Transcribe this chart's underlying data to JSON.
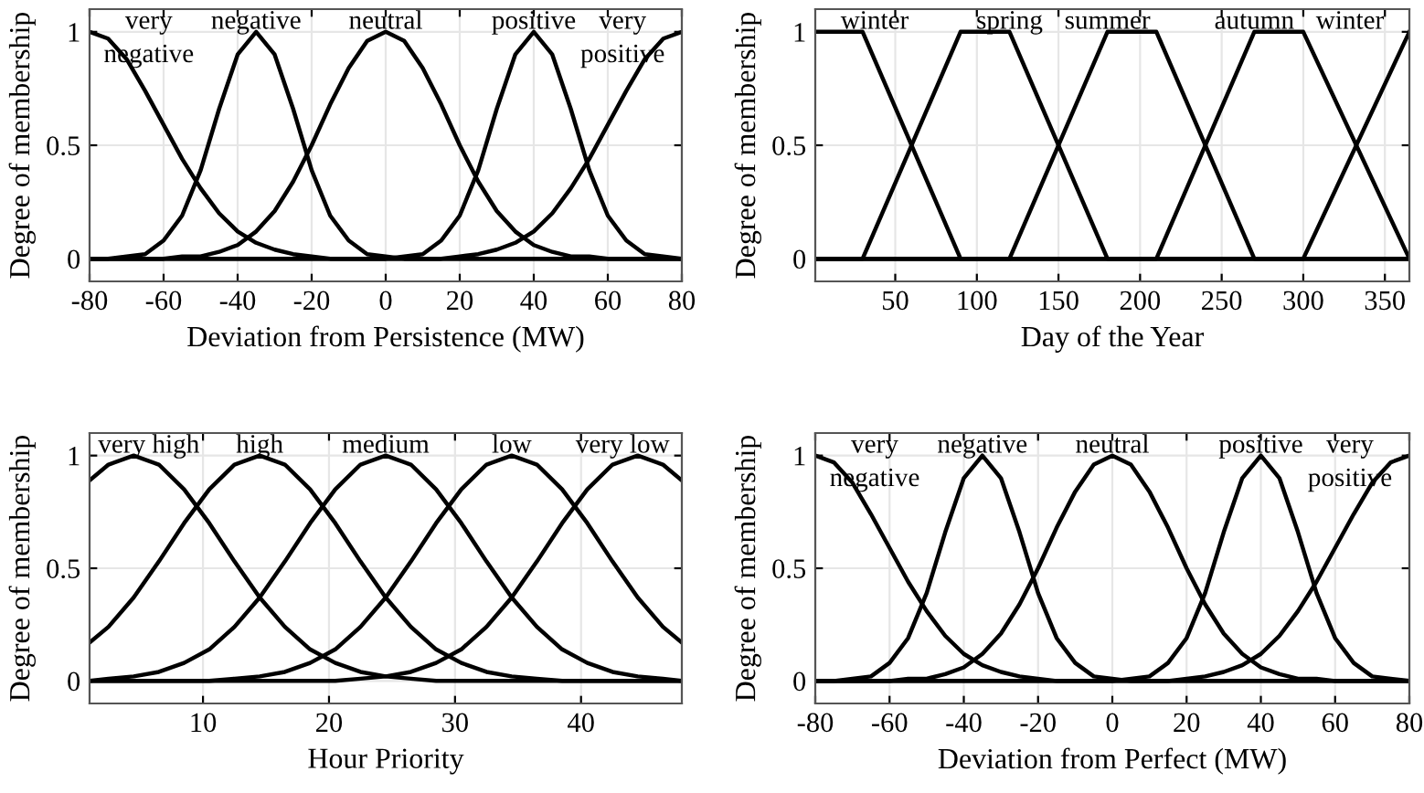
{
  "chart_data": [
    {
      "type": "line",
      "xlabel": "Deviation from Persistence (MW)",
      "ylabel": "Degree of membership",
      "xlim": [
        -80,
        80
      ],
      "xticks": [
        -80,
        -60,
        -40,
        -20,
        0,
        20,
        40,
        60,
        80
      ],
      "ylim": [
        -0.1,
        1.1
      ],
      "yticks": [
        0,
        0.5,
        1
      ],
      "grid": true,
      "legend": "top",
      "marker": "none",
      "line_style": "solid",
      "x": [
        -80,
        -75,
        -70,
        -65,
        -60,
        -55,
        -50,
        -45,
        -40,
        -35,
        -30,
        -25,
        -20,
        -15,
        -10,
        -5,
        0,
        5,
        10,
        15,
        20,
        25,
        30,
        35,
        40,
        45,
        50,
        55,
        60,
        65,
        70,
        75,
        80
      ],
      "series": [
        {
          "name": "very\nnegative",
          "color": "#000000",
          "values": [
            1,
            0.97,
            0.88,
            0.74,
            0.59,
            0.44,
            0.31,
            0.2,
            0.12,
            0.07,
            0.04,
            0.02,
            0.01,
            0,
            0,
            0,
            0,
            0,
            0,
            0,
            0,
            0,
            0,
            0,
            0,
            0,
            0,
            0,
            0,
            0,
            0,
            0,
            0
          ]
        },
        {
          "name": "negative",
          "color": "#000000",
          "values": [
            0,
            0,
            0.01,
            0.02,
            0.08,
            0.19,
            0.39,
            0.66,
            0.9,
            1,
            0.9,
            0.66,
            0.39,
            0.19,
            0.08,
            0.02,
            0.01,
            0,
            0,
            0,
            0,
            0,
            0,
            0,
            0,
            0,
            0,
            0,
            0,
            0,
            0,
            0,
            0
          ]
        },
        {
          "name": "neutral",
          "color": "#000000",
          "values": [
            0,
            0,
            0,
            0,
            0,
            0.01,
            0.01,
            0.03,
            0.06,
            0.12,
            0.21,
            0.34,
            0.5,
            0.68,
            0.84,
            0.96,
            1,
            0.96,
            0.84,
            0.68,
            0.5,
            0.34,
            0.21,
            0.12,
            0.06,
            0.03,
            0.01,
            0.01,
            0,
            0,
            0,
            0,
            0
          ]
        },
        {
          "name": "positive",
          "color": "#000000",
          "values": [
            0,
            0,
            0,
            0,
            0,
            0,
            0,
            0,
            0,
            0,
            0,
            0,
            0,
            0,
            0,
            0,
            0,
            0.01,
            0.02,
            0.08,
            0.19,
            0.39,
            0.66,
            0.9,
            1,
            0.9,
            0.66,
            0.39,
            0.19,
            0.08,
            0.02,
            0.01,
            0
          ]
        },
        {
          "name": "very\npositive",
          "color": "#000000",
          "values": [
            0,
            0,
            0,
            0,
            0,
            0,
            0,
            0,
            0,
            0,
            0,
            0,
            0,
            0,
            0,
            0,
            0,
            0,
            0,
            0,
            0.01,
            0.02,
            0.04,
            0.07,
            0.12,
            0.2,
            0.31,
            0.44,
            0.59,
            0.74,
            0.88,
            0.97,
            1
          ]
        }
      ]
    },
    {
      "type": "line",
      "xlabel": "Day of the Year",
      "ylabel": "Degree of membership",
      "xlim": [
        1,
        365
      ],
      "xticks": [
        50,
        100,
        150,
        200,
        250,
        300,
        350
      ],
      "ylim": [
        -0.1,
        1.1
      ],
      "yticks": [
        0,
        0.5,
        1
      ],
      "grid": true,
      "legend": "top",
      "marker": "none",
      "line_style": "solid",
      "series": [
        {
          "name": "winter",
          "color": "#000000",
          "x": [
            1,
            30,
            90,
            365
          ],
          "values": [
            1,
            1,
            0,
            0
          ]
        },
        {
          "name": "spring",
          "color": "#000000",
          "x": [
            1,
            30,
            90,
            120,
            180,
            365
          ],
          "values": [
            0,
            0,
            1,
            1,
            0,
            0
          ]
        },
        {
          "name": "summer",
          "color": "#000000",
          "x": [
            1,
            120,
            180,
            210,
            270,
            365
          ],
          "values": [
            0,
            0,
            1,
            1,
            0,
            0
          ]
        },
        {
          "name": "autumn",
          "color": "#000000",
          "x": [
            1,
            210,
            270,
            300,
            365
          ],
          "values": [
            0,
            0,
            1,
            1,
            0
          ]
        },
        {
          "name": "winter",
          "color": "#000000",
          "x": [
            1,
            300,
            365
          ],
          "values": [
            0,
            0,
            1
          ]
        }
      ]
    },
    {
      "type": "line",
      "xlabel": "Hour Priority",
      "ylabel": "Degree of membership",
      "xlim": [
        1,
        48
      ],
      "xticks": [
        10,
        20,
        30,
        40
      ],
      "ylim": [
        -0.1,
        1.1
      ],
      "yticks": [
        0,
        0.5,
        1
      ],
      "grid": true,
      "legend": "top",
      "marker": "none",
      "line_style": "solid",
      "x": [
        1,
        2.5,
        4.5,
        6.5,
        8.5,
        10.5,
        12.5,
        14.5,
        16.5,
        18.5,
        20.5,
        22.5,
        24.5,
        26.5,
        28.5,
        30.5,
        32.5,
        34.5,
        36.5,
        38.5,
        40.5,
        42.5,
        44.5,
        46.5,
        48
      ],
      "series": [
        {
          "name": "very high",
          "color": "#000000",
          "values": [
            0.89,
            0.96,
            1,
            0.96,
            0.85,
            0.7,
            0.53,
            0.37,
            0.24,
            0.14,
            0.08,
            0.04,
            0.02,
            0.01,
            0,
            0,
            0,
            0,
            0,
            0,
            0,
            0,
            0,
            0,
            0
          ]
        },
        {
          "name": "high",
          "color": "#000000",
          "values": [
            0.17,
            0.24,
            0.37,
            0.53,
            0.7,
            0.85,
            0.96,
            1,
            0.96,
            0.85,
            0.7,
            0.53,
            0.37,
            0.24,
            0.14,
            0.08,
            0.04,
            0.02,
            0.01,
            0,
            0,
            0,
            0,
            0,
            0
          ]
        },
        {
          "name": "medium",
          "color": "#000000",
          "values": [
            0,
            0.01,
            0.02,
            0.04,
            0.08,
            0.14,
            0.24,
            0.37,
            0.53,
            0.7,
            0.85,
            0.96,
            1,
            0.96,
            0.85,
            0.7,
            0.53,
            0.37,
            0.24,
            0.14,
            0.08,
            0.04,
            0.02,
            0.01,
            0
          ]
        },
        {
          "name": "low",
          "color": "#000000",
          "values": [
            0,
            0,
            0,
            0,
            0,
            0,
            0.01,
            0.02,
            0.04,
            0.08,
            0.14,
            0.24,
            0.37,
            0.53,
            0.7,
            0.85,
            0.96,
            1,
            0.96,
            0.85,
            0.7,
            0.53,
            0.37,
            0.24,
            0.17
          ]
        },
        {
          "name": "very low",
          "color": "#000000",
          "values": [
            0,
            0,
            0,
            0,
            0,
            0,
            0,
            0,
            0,
            0,
            0,
            0.01,
            0.02,
            0.04,
            0.08,
            0.14,
            0.24,
            0.37,
            0.53,
            0.7,
            0.85,
            0.96,
            1,
            0.96,
            0.89
          ]
        }
      ]
    },
    {
      "type": "line",
      "xlabel": "Deviation from Perfect (MW)",
      "ylabel": "Degree of membership",
      "xlim": [
        -80,
        80
      ],
      "xticks": [
        -80,
        -60,
        -40,
        -20,
        0,
        20,
        40,
        60,
        80
      ],
      "ylim": [
        -0.1,
        1.1
      ],
      "yticks": [
        0,
        0.5,
        1
      ],
      "grid": true,
      "legend": "top",
      "marker": "none",
      "line_style": "solid",
      "x": [
        -80,
        -75,
        -70,
        -65,
        -60,
        -55,
        -50,
        -45,
        -40,
        -35,
        -30,
        -25,
        -20,
        -15,
        -10,
        -5,
        0,
        5,
        10,
        15,
        20,
        25,
        30,
        35,
        40,
        45,
        50,
        55,
        60,
        65,
        70,
        75,
        80
      ],
      "series": [
        {
          "name": "very\nnegative",
          "color": "#000000",
          "values": [
            1,
            0.97,
            0.88,
            0.74,
            0.59,
            0.44,
            0.31,
            0.2,
            0.12,
            0.07,
            0.04,
            0.02,
            0.01,
            0,
            0,
            0,
            0,
            0,
            0,
            0,
            0,
            0,
            0,
            0,
            0,
            0,
            0,
            0,
            0,
            0,
            0,
            0,
            0
          ]
        },
        {
          "name": "negative",
          "color": "#000000",
          "values": [
            0,
            0,
            0.01,
            0.02,
            0.08,
            0.19,
            0.39,
            0.66,
            0.9,
            1,
            0.9,
            0.66,
            0.39,
            0.19,
            0.08,
            0.02,
            0.01,
            0,
            0,
            0,
            0,
            0,
            0,
            0,
            0,
            0,
            0,
            0,
            0,
            0,
            0,
            0,
            0
          ]
        },
        {
          "name": "neutral",
          "color": "#000000",
          "values": [
            0,
            0,
            0,
            0,
            0,
            0.01,
            0.01,
            0.03,
            0.06,
            0.12,
            0.21,
            0.34,
            0.5,
            0.68,
            0.84,
            0.96,
            1,
            0.96,
            0.84,
            0.68,
            0.5,
            0.34,
            0.21,
            0.12,
            0.06,
            0.03,
            0.01,
            0.01,
            0,
            0,
            0,
            0,
            0
          ]
        },
        {
          "name": "positive",
          "color": "#000000",
          "values": [
            0,
            0,
            0,
            0,
            0,
            0,
            0,
            0,
            0,
            0,
            0,
            0,
            0,
            0,
            0,
            0,
            0,
            0.01,
            0.02,
            0.08,
            0.19,
            0.39,
            0.66,
            0.9,
            1,
            0.9,
            0.66,
            0.39,
            0.19,
            0.08,
            0.02,
            0.01,
            0
          ]
        },
        {
          "name": "very\npositive",
          "color": "#000000",
          "values": [
            0,
            0,
            0,
            0,
            0,
            0,
            0,
            0,
            0,
            0,
            0,
            0,
            0,
            0,
            0,
            0,
            0,
            0,
            0,
            0,
            0.01,
            0.02,
            0.04,
            0.07,
            0.12,
            0.2,
            0.31,
            0.44,
            0.59,
            0.74,
            0.88,
            0.97,
            1
          ]
        }
      ]
    }
  ]
}
